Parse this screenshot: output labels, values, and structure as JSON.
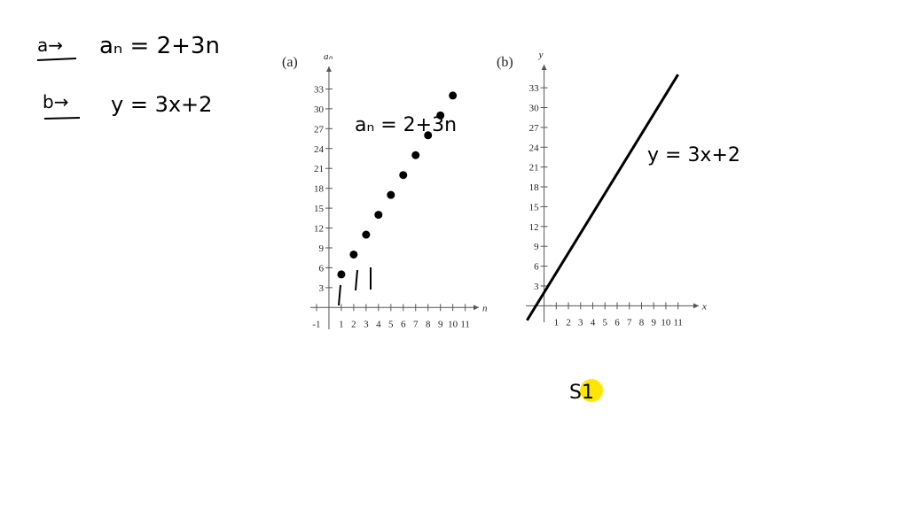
{
  "notes": [
    {
      "marker": "a→",
      "text": "aₙ = 2+3n"
    },
    {
      "marker": "b→",
      "text": "y = 3x+2"
    }
  ],
  "cursor_text": "S1",
  "chart_data": [
    {
      "type": "scatter",
      "panel_label": "(a)",
      "xlabel": "n",
      "ylabel": "aₙ",
      "annotation": "aₙ = 2+3n",
      "x": [
        1,
        2,
        3,
        4,
        5,
        6,
        7,
        8,
        9,
        10
      ],
      "values": [
        5,
        8,
        11,
        14,
        17,
        20,
        23,
        26,
        29,
        32
      ],
      "color": "#000000",
      "xlim": [
        -1.5,
        12.1
      ],
      "ylim": [
        -3.3,
        36.4
      ],
      "xticks": [
        -1,
        1,
        2,
        3,
        4,
        5,
        6,
        7,
        8,
        9,
        10,
        11
      ],
      "yticks": [
        3,
        6,
        9,
        12,
        15,
        18,
        21,
        24,
        27,
        30,
        33
      ]
    },
    {
      "type": "line",
      "panel_label": "(b)",
      "xlabel": "x",
      "ylabel": "y",
      "annotation": "y = 3x+2",
      "x": [
        -1.4,
        11
      ],
      "values": [
        -2.2,
        35
      ],
      "color": "#000000",
      "xlim": [
        -1.5,
        12.7
      ],
      "ylim": [
        -2.5,
        36.5
      ],
      "xticks": [
        1,
        2,
        3,
        4,
        5,
        6,
        7,
        8,
        9,
        10,
        11
      ],
      "yticks": [
        3,
        6,
        9,
        12,
        15,
        18,
        21,
        24,
        27,
        30,
        33
      ]
    }
  ]
}
